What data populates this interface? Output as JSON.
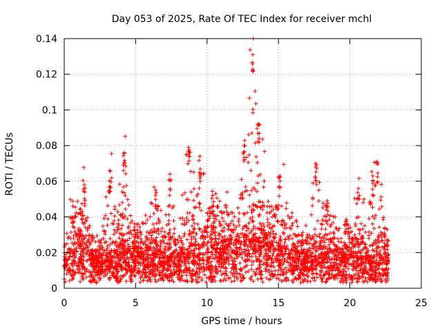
{
  "chart_data": {
    "type": "scatter",
    "title": "Day 053 of 2025, Rate Of TEC Index for receiver mchl",
    "xlabel": "GPS time / hours",
    "ylabel": "ROTI / TECUs",
    "xlim": [
      0,
      25
    ],
    "ylim": [
      0,
      0.14
    ],
    "xticks": [
      0,
      5,
      10,
      15,
      20,
      25
    ],
    "xtick_labels": [
      "0",
      "5",
      "10",
      "15",
      "20",
      "25"
    ],
    "yticks": [
      0,
      0.02,
      0.04,
      0.06,
      0.08,
      0.1,
      0.12,
      0.14
    ],
    "ytick_labels": [
      "0",
      "0.02",
      "0.04",
      "0.06",
      "0.08",
      "0.1",
      "0.12",
      "0.14"
    ],
    "grid": true,
    "marker": "+",
    "series": [
      {
        "name": "ROTI",
        "color": "#ff0000",
        "data_range_x": [
          0,
          22.7
        ],
        "peaks": [
          {
            "x": 0.6,
            "y": 0.046
          },
          {
            "x": 1.4,
            "y": 0.058
          },
          {
            "x": 3.2,
            "y": 0.066
          },
          {
            "x": 4.2,
            "y": 0.076
          },
          {
            "x": 6.4,
            "y": 0.055
          },
          {
            "x": 7.4,
            "y": 0.064
          },
          {
            "x": 8.7,
            "y": 0.079
          },
          {
            "x": 9.5,
            "y": 0.074
          },
          {
            "x": 10.4,
            "y": 0.052
          },
          {
            "x": 12.6,
            "y": 0.08
          },
          {
            "x": 13.2,
            "y": 0.131
          },
          {
            "x": 13.6,
            "y": 0.092
          },
          {
            "x": 15.1,
            "y": 0.063
          },
          {
            "x": 17.6,
            "y": 0.07
          },
          {
            "x": 18.4,
            "y": 0.049
          },
          {
            "x": 20.6,
            "y": 0.056
          },
          {
            "x": 21.6,
            "y": 0.063
          },
          {
            "x": 21.9,
            "y": 0.071
          }
        ],
        "baseline": [
          {
            "x": 0.0,
            "y": 0.012
          },
          {
            "x": 1.0,
            "y": 0.022
          },
          {
            "x": 2.5,
            "y": 0.011
          },
          {
            "x": 4.0,
            "y": 0.018
          },
          {
            "x": 6.0,
            "y": 0.016
          },
          {
            "x": 8.0,
            "y": 0.014
          },
          {
            "x": 10.0,
            "y": 0.02
          },
          {
            "x": 12.0,
            "y": 0.022
          },
          {
            "x": 13.5,
            "y": 0.024
          },
          {
            "x": 15.0,
            "y": 0.02
          },
          {
            "x": 17.0,
            "y": 0.013
          },
          {
            "x": 19.0,
            "y": 0.017
          },
          {
            "x": 21.0,
            "y": 0.014
          },
          {
            "x": 22.7,
            "y": 0.014
          }
        ]
      }
    ]
  }
}
